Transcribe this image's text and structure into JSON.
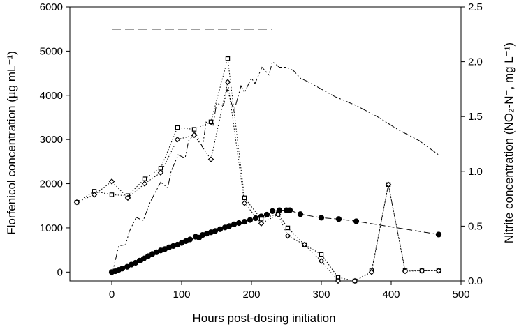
{
  "chart_data": {
    "type": "scatter",
    "xlabel": "Hours post-dosing initiation",
    "ylabel_left": "Florfenicol concentration (µg mL⁻¹)",
    "ylabel_right": "Nitrite concentration (NO₂-N⁻, mg L⁻¹)",
    "xlim": [
      -60,
      500
    ],
    "ylim_left": [
      -200,
      6000
    ],
    "ylim_right": [
      0,
      2.5
    ],
    "x_ticks": [
      0,
      100,
      200,
      300,
      400,
      500
    ],
    "y_left_ticks": [
      0,
      1000,
      2000,
      3000,
      4000,
      5000,
      6000
    ],
    "y_right_ticks": [
      0.0,
      0.5,
      1.0,
      1.5,
      2.0,
      2.5
    ],
    "grid": false,
    "legend": "none",
    "annotation": {
      "type": "dashed-bar",
      "x_start": 0,
      "x_end": 230,
      "y_left": 5500
    },
    "series": [
      {
        "axis": "left",
        "marker": "filled-circle",
        "line": "dashed",
        "x": [
          0,
          5,
          10,
          15,
          22,
          28,
          34,
          40,
          46,
          52,
          58,
          64,
          70,
          76,
          82,
          88,
          94,
          100,
          106,
          112,
          120,
          125,
          130,
          136,
          142,
          148,
          155,
          162,
          168,
          175,
          182,
          190,
          198,
          206,
          214,
          222,
          230,
          240,
          250,
          255,
          270,
          300,
          325,
          350,
          468
        ],
        "y": [
          0,
          20,
          50,
          80,
          120,
          170,
          210,
          260,
          310,
          360,
          410,
          450,
          490,
          520,
          560,
          590,
          620,
          660,
          700,
          740,
          800,
          780,
          840,
          870,
          900,
          930,
          970,
          1010,
          1040,
          1080,
          1110,
          1140,
          1180,
          1220,
          1260,
          1300,
          1380,
          1400,
          1400,
          1400,
          1310,
          1230,
          1200,
          1150,
          850
        ]
      },
      {
        "axis": "left",
        "marker": "open-square",
        "line": "dotted",
        "x": [
          -50,
          -25,
          0,
          23,
          47,
          70,
          94,
          118,
          142,
          166,
          190,
          214,
          238,
          252,
          276,
          300,
          324,
          348,
          372,
          396,
          420,
          444,
          468
        ],
        "y": [
          1580,
          1830,
          1750,
          1730,
          2110,
          2350,
          3270,
          3230,
          3400,
          4830,
          1680,
          1200,
          1320,
          1000,
          620,
          400,
          -120,
          -200,
          30,
          1980,
          40,
          30,
          30
        ]
      },
      {
        "axis": "left",
        "marker": "open-diamond",
        "line": "dotted",
        "x": [
          -50,
          -25,
          0,
          23,
          47,
          70,
          94,
          118,
          142,
          166,
          190,
          214,
          238,
          252,
          276,
          300,
          324,
          348,
          372,
          396,
          420,
          444,
          468
        ],
        "y": [
          1580,
          1750,
          2050,
          1680,
          2000,
          2250,
          3000,
          3100,
          2550,
          4300,
          1560,
          1100,
          1300,
          820,
          620,
          250,
          -200,
          -200,
          0,
          1980,
          20,
          30,
          30
        ]
      },
      {
        "axis": "right",
        "marker": "none",
        "line": "dash-dot-dot",
        "x": [
          0,
          10,
          20,
          25,
          35,
          45,
          55,
          60,
          70,
          80,
          85,
          95,
          105,
          110,
          120,
          130,
          135,
          145,
          150,
          160,
          165,
          175,
          185,
          190,
          200,
          205,
          215,
          225,
          230,
          240,
          250,
          260,
          270,
          280,
          300,
          320,
          350,
          380,
          410,
          440,
          468
        ],
        "y": [
          0.05,
          0.32,
          0.33,
          0.45,
          0.58,
          0.55,
          0.72,
          0.78,
          0.9,
          0.85,
          1.0,
          1.15,
          1.12,
          1.28,
          1.35,
          1.22,
          1.45,
          1.42,
          1.62,
          1.6,
          1.75,
          1.55,
          1.78,
          1.72,
          1.85,
          1.8,
          1.95,
          1.88,
          2.0,
          1.95,
          1.95,
          1.92,
          1.85,
          1.82,
          1.75,
          1.68,
          1.6,
          1.5,
          1.38,
          1.28,
          1.15
        ]
      }
    ]
  }
}
